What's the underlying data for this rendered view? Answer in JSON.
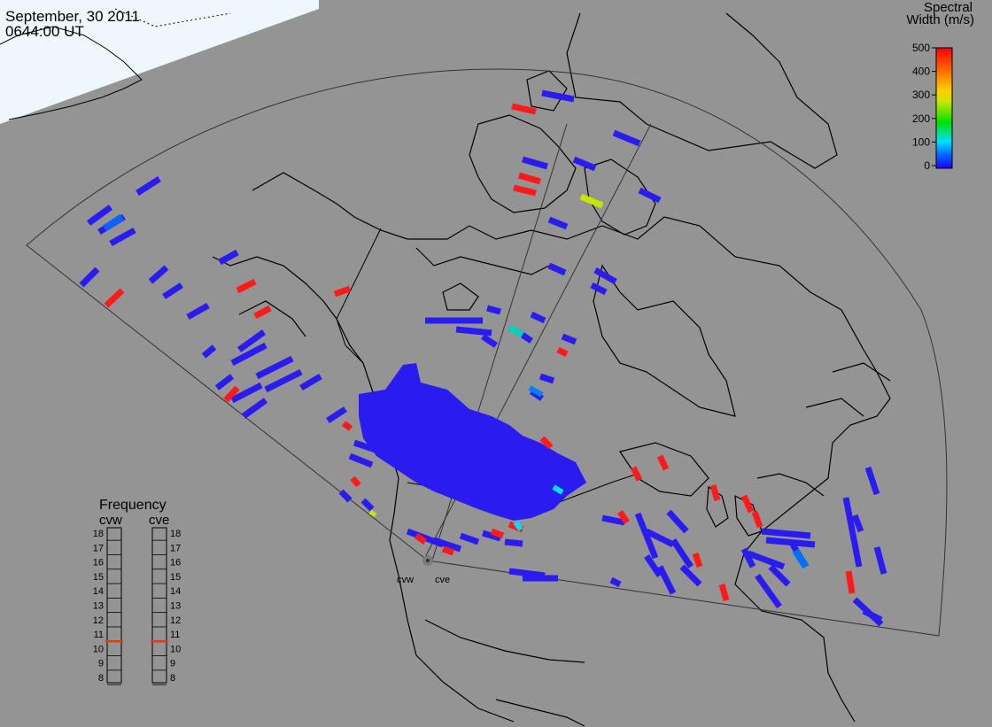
{
  "header": {
    "date": "September, 30 2011",
    "time": "0644:00 UT"
  },
  "colorbar": {
    "title_line1": "Spectral",
    "title_line2": "Width (m/s)",
    "ticks": [
      "500",
      "400",
      "300",
      "200",
      "100",
      "0"
    ]
  },
  "frequency_panel": {
    "title": "Frequency",
    "left_radar": "cvw",
    "right_radar": "cve",
    "scale_labels": [
      "18",
      "17",
      "16",
      "15",
      "14",
      "13",
      "12",
      "11",
      "10",
      "9",
      "8"
    ],
    "cvw_marker_mhz": 10.5,
    "cve_marker_mhz": 10.5
  },
  "radar_sites": {
    "west": "cvw",
    "east": "cve"
  },
  "colors": {
    "background": "#949494",
    "day_region": "#e8f4fb",
    "low_width": "#2a1cf0",
    "high_width": "#ff1a1a",
    "marker": "#ff3300"
  }
}
